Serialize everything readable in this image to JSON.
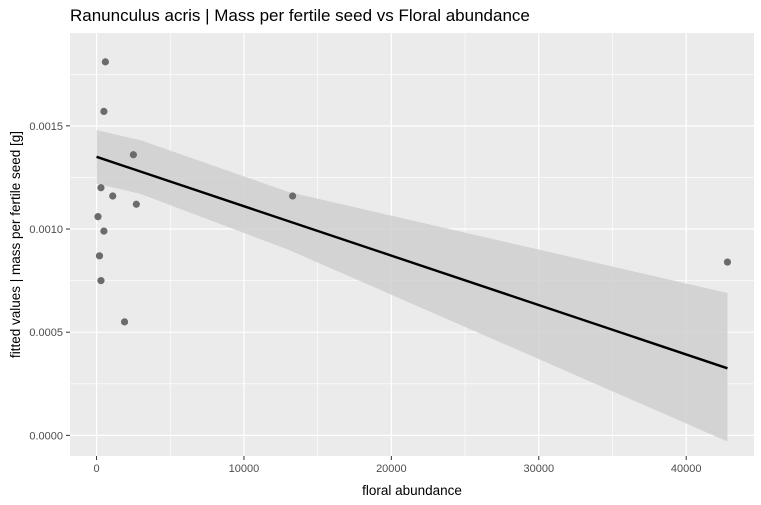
{
  "chart_data": {
    "type": "scatter",
    "title": "Ranunculus acris | Mass per fertile seed vs Floral abundance",
    "xlabel": "floral abundance",
    "ylabel": "fitted values | mass per fertile seed [g]",
    "xlim": [
      -1800,
      44600
    ],
    "ylim": [
      -0.0001,
      0.00195
    ],
    "x_ticks": [
      0,
      10000,
      20000,
      30000,
      40000
    ],
    "x_tick_labels": [
      "0",
      "10000",
      "20000",
      "30000",
      "40000"
    ],
    "y_ticks": [
      0.0,
      0.0005,
      0.001,
      0.0015
    ],
    "y_tick_labels": [
      "0.0000",
      "0.0005",
      "0.0010",
      "0.0015"
    ],
    "grid": true,
    "colors": {
      "panel": "#ebebeb",
      "grid": "#ffffff",
      "points": "#6b6b6b",
      "fit": "#000000",
      "ribbon": "#cfcfcf"
    },
    "points": [
      {
        "x": 600,
        "y": 0.00181
      },
      {
        "x": 500,
        "y": 0.00157
      },
      {
        "x": 2500,
        "y": 0.00136
      },
      {
        "x": 300,
        "y": 0.0012
      },
      {
        "x": 1100,
        "y": 0.00116
      },
      {
        "x": 2700,
        "y": 0.00112
      },
      {
        "x": 13300,
        "y": 0.00116
      },
      {
        "x": 100,
        "y": 0.00106
      },
      {
        "x": 500,
        "y": 0.00099
      },
      {
        "x": 200,
        "y": 0.00087
      },
      {
        "x": 300,
        "y": 0.00075
      },
      {
        "x": 1900,
        "y": 0.00055
      },
      {
        "x": 42800,
        "y": 0.00084
      }
    ],
    "fit_line": {
      "x": [
        0,
        42800
      ],
      "y": [
        0.00135,
        0.000325
      ]
    },
    "confidence_band": {
      "x": [
        0,
        3000,
        13000,
        42800
      ],
      "upper": [
        0.00148,
        0.00143,
        0.00118,
        0.00069
      ],
      "lower": [
        0.00122,
        0.00117,
        0.0009,
        -3e-05
      ]
    }
  }
}
